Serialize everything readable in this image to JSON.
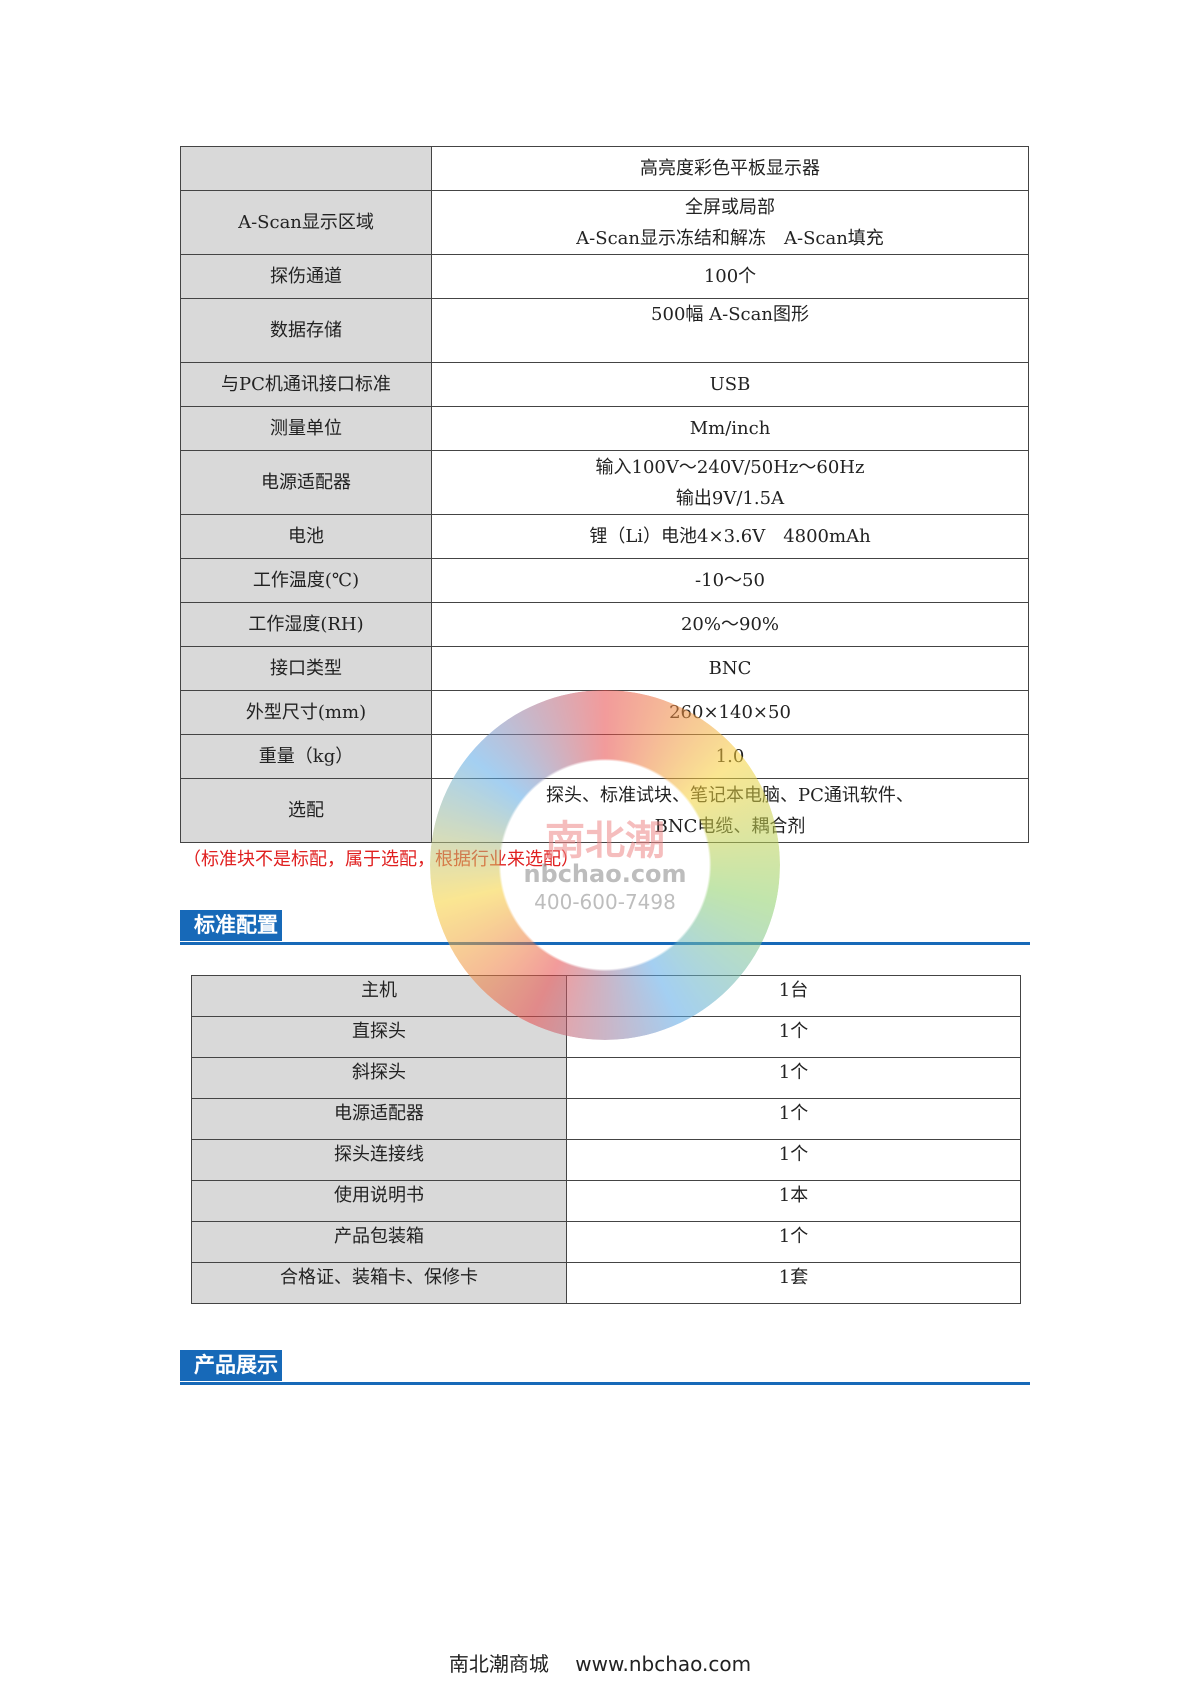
{
  "spec_table": {
    "rows": [
      {
        "key": "",
        "value": [
          "高亮度彩色平板显示器"
        ]
      },
      {
        "key": "A-Scan显示区域",
        "value": [
          "全屏或局部",
          "A-Scan显示冻结和解冻　A-Scan填充"
        ]
      },
      {
        "key": "探伤通道",
        "value": [
          "100个"
        ]
      },
      {
        "key": "数据存储",
        "value": [
          "500幅 A-Scan图形"
        ]
      },
      {
        "key": "与PC机通讯接口标准",
        "value": [
          "USB"
        ]
      },
      {
        "key": "测量单位",
        "value": [
          "Mm/inch"
        ]
      },
      {
        "key": "电源适配器",
        "value": [
          "输入100V～240V/50Hz～60Hz",
          "输出9V/1.5A"
        ]
      },
      {
        "key": "电池",
        "value": [
          "锂（Li）电池4×3.6V　4800mAh"
        ]
      },
      {
        "key": "工作温度(℃)",
        "value": [
          "-10～50"
        ]
      },
      {
        "key": "工作湿度(RH)",
        "value": [
          "20%～90%"
        ]
      },
      {
        "key": "接口类型",
        "value": [
          "BNC"
        ]
      },
      {
        "key": "外型尺寸(mm)",
        "value": [
          "260×140×50"
        ]
      },
      {
        "key": "重量（kg）",
        "value": [
          "1.0"
        ]
      },
      {
        "key": "选配",
        "value": [
          "探头、标准试块、笔记本电脑、PC通讯软件、",
          "BNC电缆、耦合剂"
        ]
      }
    ],
    "note": "（标准块不是标配，属于选配，根据行业来选配）"
  },
  "section_standard": {
    "title": "标准配置"
  },
  "std_table": {
    "rows": [
      {
        "item": "主机",
        "qty": "1台"
      },
      {
        "item": "直探头",
        "qty": "1个"
      },
      {
        "item": "斜探头",
        "qty": "1个"
      },
      {
        "item": "电源适配器",
        "qty": "1个"
      },
      {
        "item": "探头连接线",
        "qty": "1个"
      },
      {
        "item": "使用说明书",
        "qty": "1本"
      },
      {
        "item": "产品包装箱",
        "qty": "1个"
      },
      {
        "item": "合格证、装箱卡、保修卡",
        "qty": "1套"
      }
    ]
  },
  "section_display": {
    "title": "产品展示"
  },
  "watermark": {
    "brand": "南北潮",
    "site": "nbchao.com",
    "phone": "400-600-7498"
  },
  "footer": {
    "name": "南北潮商城",
    "url": "www.nbchao.com"
  },
  "colors": {
    "accent": "#1769b8",
    "note": "#e02020",
    "key_cell": "#d9d9d9"
  }
}
